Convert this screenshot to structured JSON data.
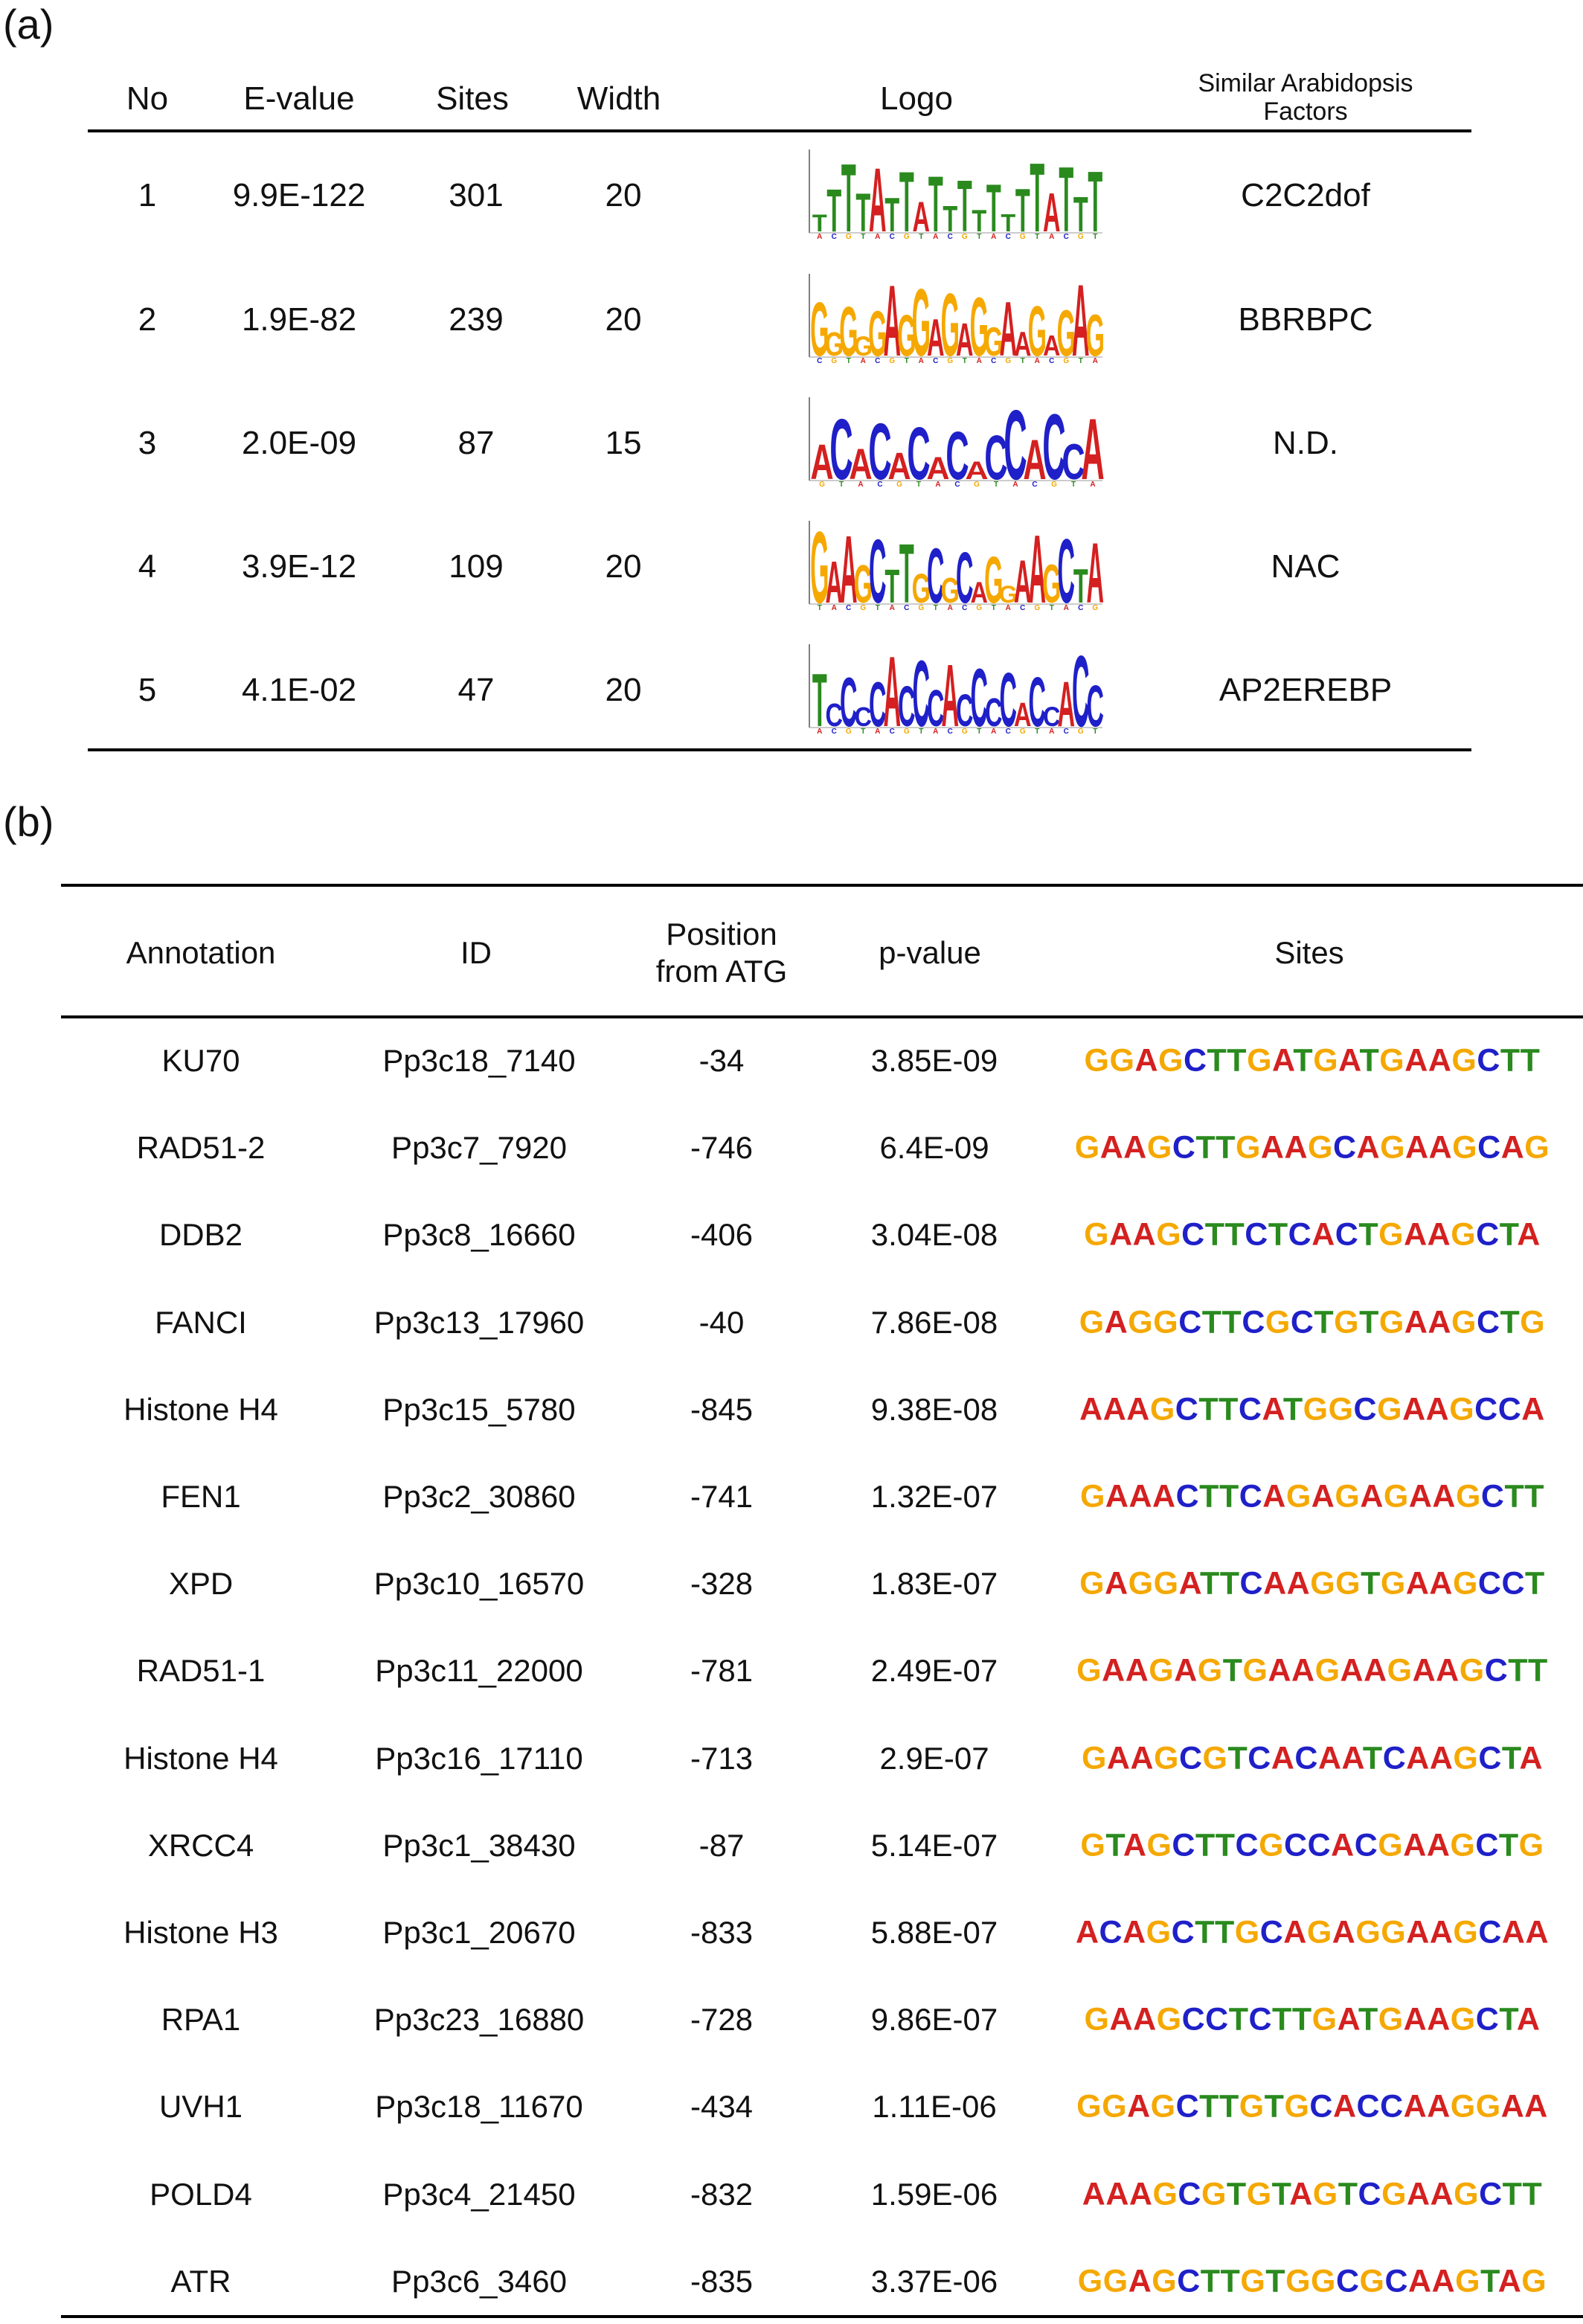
{
  "panel_a": {
    "label": "(a)",
    "headers": {
      "no": "No",
      "evalue": "E-value",
      "sites": "Sites",
      "width": "Width",
      "logo": "Logo",
      "similar_line1": "Similar Arabidopsis",
      "similar_line2": "Factors"
    },
    "rows": [
      {
        "no": "1",
        "evalue": "9.9E-122",
        "sites": "301",
        "width": "20",
        "factor": "C2C2dof",
        "logo_letters": "TTTTATTATTTTTTTTATTT"
      },
      {
        "no": "2",
        "evalue": "1.9E-82",
        "sites": "239",
        "width": "20",
        "factor": "BBRBPC",
        "logo_letters": "GGGGGAGGAGAGGAAGAGAG"
      },
      {
        "no": "3",
        "evalue": "2.0E-09",
        "sites": "87",
        "width": "15",
        "factor": "N.D.",
        "logo_letters": "ACACACACACCACCA"
      },
      {
        "no": "4",
        "evalue": "3.9E-12",
        "sites": "109",
        "width": "20",
        "factor": "NAC",
        "logo_letters": "GAAGCTTGCGCAGGAAGCTA"
      },
      {
        "no": "5",
        "evalue": "4.1E-02",
        "sites": "47",
        "width": "20",
        "factor": "AP2EREBP",
        "logo_letters": "TCCCCACCCACCCCACCACC"
      }
    ]
  },
  "panel_b": {
    "label": "(b)",
    "headers": {
      "annotation": "Annotation",
      "id": "ID",
      "position_line1": "Position",
      "position_line2": "from ATG",
      "pvalue": "p-value",
      "sites": "Sites"
    },
    "rows": [
      {
        "annotation": "KU70",
        "id": "Pp3c18_7140",
        "position": "-34",
        "pvalue": "3.85E-09",
        "site": "GGAGCTTGATGATGAAGCTT"
      },
      {
        "annotation": "RAD51-2",
        "id": "Pp3c7_7920",
        "position": "-746",
        "pvalue": "6.4E-09",
        "site": "GAAGCTTGAAGCAGAAGCAG"
      },
      {
        "annotation": "DDB2",
        "id": "Pp3c8_16660",
        "position": "-406",
        "pvalue": "3.04E-08",
        "site": "GAAGCTTCTCACTGAAGCTA"
      },
      {
        "annotation": "FANCI",
        "id": "Pp3c13_17960",
        "position": "-40",
        "pvalue": "7.86E-08",
        "site": "GAGGCTTCGCTGTGAAGCTG"
      },
      {
        "annotation": "Histone H4",
        "id": "Pp3c15_5780",
        "position": "-845",
        "pvalue": "9.38E-08",
        "site": "AAAGCTTCATGGCGAAGCCA"
      },
      {
        "annotation": "FEN1",
        "id": "Pp3c2_30860",
        "position": "-741",
        "pvalue": "1.32E-07",
        "site": "GAAACTTCAGAGAGAAGCTT"
      },
      {
        "annotation": "XPD",
        "id": "Pp3c10_16570",
        "position": "-328",
        "pvalue": "1.83E-07",
        "site": "GAGGATTCAAGGTGAAGCCT"
      },
      {
        "annotation": "RAD51-1",
        "id": "Pp3c11_22000",
        "position": "-781",
        "pvalue": "2.49E-07",
        "site": "GAAGAGTGAAGAAGAAGCTT"
      },
      {
        "annotation": "Histone H4",
        "id": "Pp3c16_17110",
        "position": "-713",
        "pvalue": "2.9E-07",
        "site": "GAAGCGTCACAATCAAGCTA"
      },
      {
        "annotation": "XRCC4",
        "id": "Pp3c1_38430",
        "position": "-87",
        "pvalue": "5.14E-07",
        "site": "GTAGCTTCGCCACGAAGCTG"
      },
      {
        "annotation": "Histone H3",
        "id": "Pp3c1_20670",
        "position": "-833",
        "pvalue": "5.88E-07",
        "site": "ACAGCTTGCAGAGGAAGCAA"
      },
      {
        "annotation": "RPA1",
        "id": "Pp3c23_16880",
        "position": "-728",
        "pvalue": "9.86E-07",
        "site": "GAAGCCTCTTGATGAAGCTA"
      },
      {
        "annotation": "UVH1",
        "id": "Pp3c18_11670",
        "position": "-434",
        "pvalue": "1.11E-06",
        "site": "GGAGCTTGTGCACCAAGGAA"
      },
      {
        "annotation": "POLD4",
        "id": "Pp3c4_21450",
        "position": "-832",
        "pvalue": "1.59E-06",
        "site": "AAAGCGTGTAGTCGAAGCTT"
      },
      {
        "annotation": "ATR",
        "id": "Pp3c6_3460",
        "position": "-835",
        "pvalue": "3.37E-06",
        "site": "GGAGCTTGTGGCGCAAGTAG"
      }
    ]
  },
  "colors": {
    "A": "#d42020",
    "C": "#1f20c8",
    "G": "#f5a800",
    "T": "#2a8a1e"
  }
}
